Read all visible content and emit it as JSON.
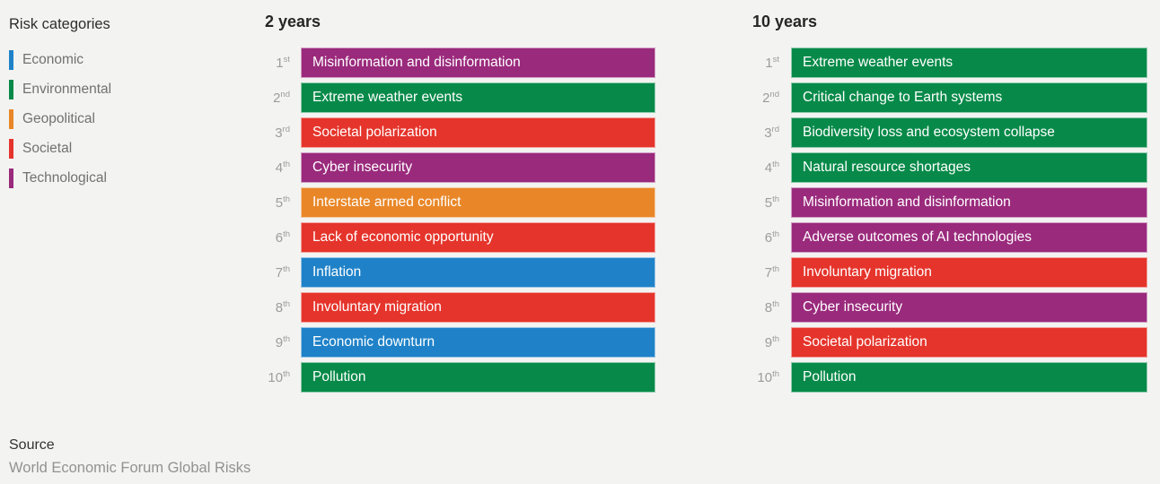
{
  "chart_data": {
    "type": "table",
    "description": "Ranked global risks over 2-year and 10-year horizons, colored by risk category",
    "legend_title": "Risk categories",
    "legend_position": "left",
    "categories_legend": [
      {
        "key": "economic",
        "label": "Economic",
        "color": "#1f82c8"
      },
      {
        "key": "environmental",
        "label": "Environmental",
        "color": "#078a49"
      },
      {
        "key": "geopolitical",
        "label": "Geopolitical",
        "color": "#e98728"
      },
      {
        "key": "societal",
        "label": "Societal",
        "color": "#e5342b"
      },
      {
        "key": "technological",
        "label": "Technological",
        "color": "#9a2a7c"
      }
    ],
    "columns": [
      {
        "title": "2 years",
        "rows": [
          {
            "rank": "1",
            "ordinal": "st",
            "label": "Misinformation and disinformation",
            "category": "technological"
          },
          {
            "rank": "2",
            "ordinal": "nd",
            "label": "Extreme weather events",
            "category": "environmental"
          },
          {
            "rank": "3",
            "ordinal": "rd",
            "label": "Societal polarization",
            "category": "societal"
          },
          {
            "rank": "4",
            "ordinal": "th",
            "label": "Cyber insecurity",
            "category": "technological"
          },
          {
            "rank": "5",
            "ordinal": "th",
            "label": "Interstate armed conflict",
            "category": "geopolitical"
          },
          {
            "rank": "6",
            "ordinal": "th",
            "label": "Lack of economic opportunity",
            "category": "societal"
          },
          {
            "rank": "7",
            "ordinal": "th",
            "label": "Inflation",
            "category": "economic"
          },
          {
            "rank": "8",
            "ordinal": "th",
            "label": "Involuntary migration",
            "category": "societal"
          },
          {
            "rank": "9",
            "ordinal": "th",
            "label": "Economic downturn",
            "category": "economic"
          },
          {
            "rank": "10",
            "ordinal": "th",
            "label": "Pollution",
            "category": "environmental"
          }
        ]
      },
      {
        "title": "10 years",
        "rows": [
          {
            "rank": "1",
            "ordinal": "st",
            "label": "Extreme weather events",
            "category": "environmental"
          },
          {
            "rank": "2",
            "ordinal": "nd",
            "label": "Critical change to Earth systems",
            "category": "environmental"
          },
          {
            "rank": "3",
            "ordinal": "rd",
            "label": "Biodiversity loss and ecosystem collapse",
            "category": "environmental"
          },
          {
            "rank": "4",
            "ordinal": "th",
            "label": "Natural resource shortages",
            "category": "environmental"
          },
          {
            "rank": "5",
            "ordinal": "th",
            "label": "Misinformation and disinformation",
            "category": "technological"
          },
          {
            "rank": "6",
            "ordinal": "th",
            "label": "Adverse outcomes of AI technologies",
            "category": "technological"
          },
          {
            "rank": "7",
            "ordinal": "th",
            "label": "Involuntary migration",
            "category": "societal"
          },
          {
            "rank": "8",
            "ordinal": "th",
            "label": "Cyber insecurity",
            "category": "technological"
          },
          {
            "rank": "9",
            "ordinal": "th",
            "label": "Societal polarization",
            "category": "societal"
          },
          {
            "rank": "10",
            "ordinal": "th",
            "label": "Pollution",
            "category": "environmental"
          }
        ]
      }
    ],
    "source_label": "Source",
    "source_text": "World Economic Forum Global Risks",
    "background_color": "#f3f3f1"
  }
}
